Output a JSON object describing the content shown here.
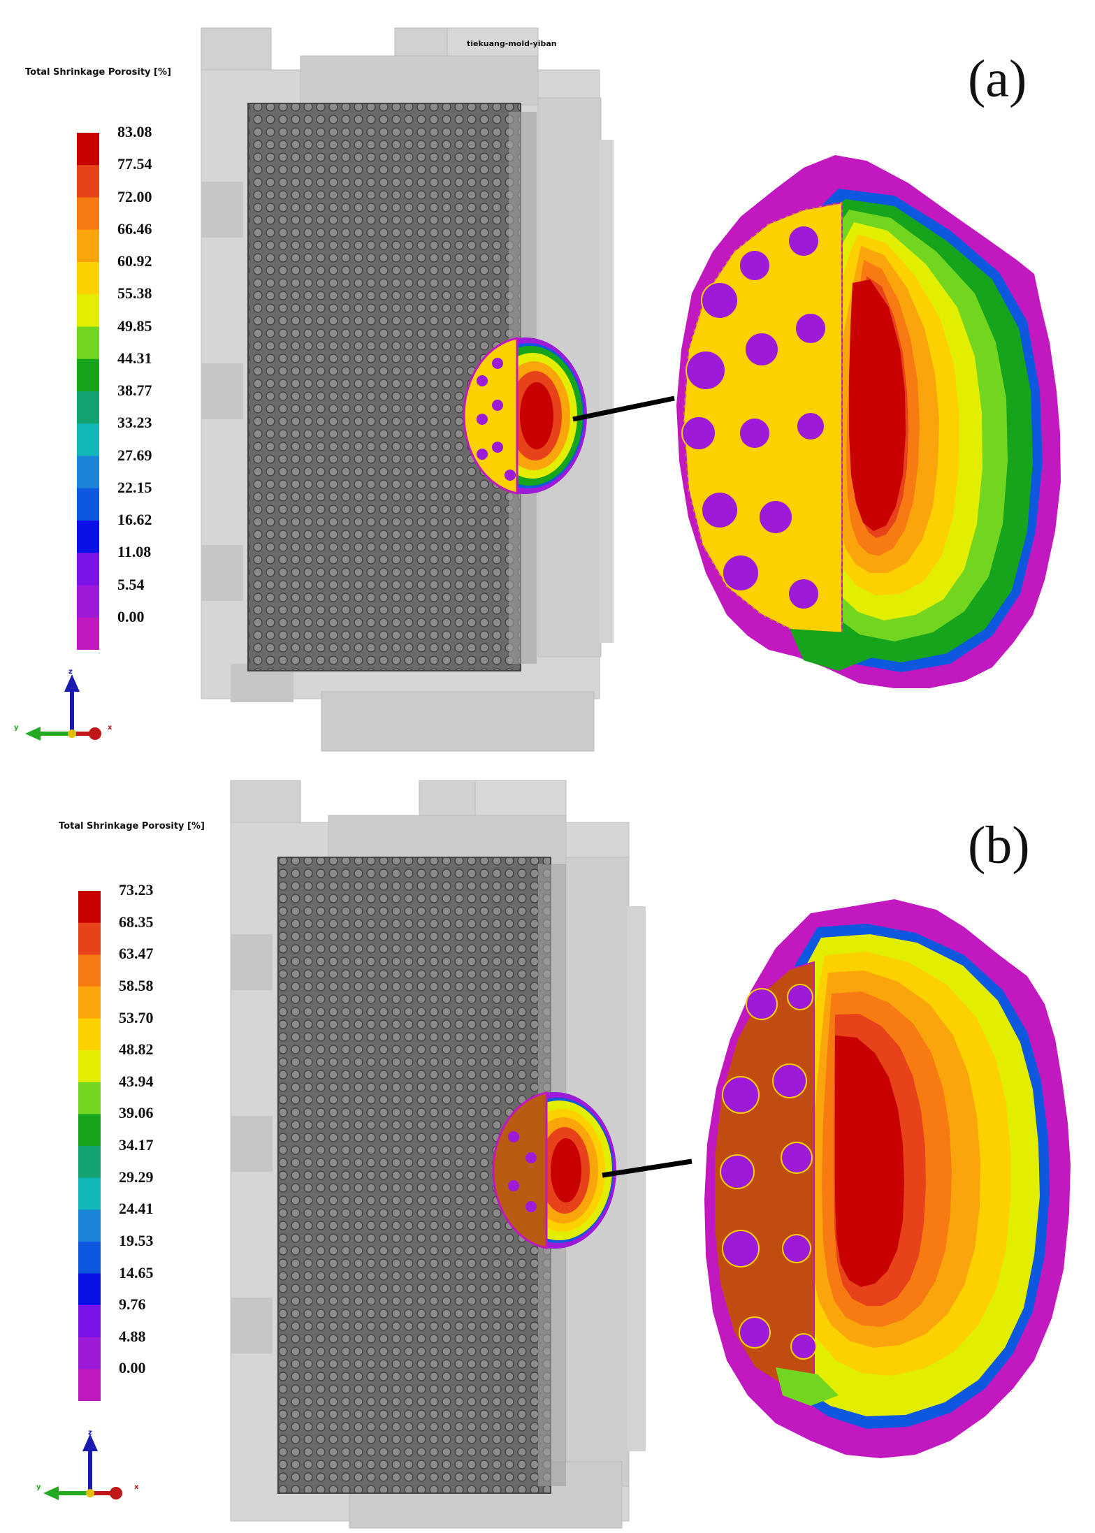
{
  "panels": [
    {
      "label": "(a)",
      "model_name": "tiekuang-mold-yiban",
      "legend": {
        "title": "Total Shrinkage Porosity [%]",
        "ticks": [
          "83.08",
          "77.54",
          "72.00",
          "66.46",
          "60.92",
          "55.38",
          "49.85",
          "44.31",
          "38.77",
          "33.23",
          "27.69",
          "22.15",
          "16.62",
          "11.08",
          "5.54",
          "0.00"
        ]
      },
      "axes": {
        "z": "z",
        "y": "y",
        "x": "x"
      }
    },
    {
      "label": "(b)",
      "model_name": "",
      "legend": {
        "title": "Total Shrinkage Porosity [%]",
        "ticks": [
          "73.23",
          "68.35",
          "63.47",
          "58.58",
          "53.70",
          "48.82",
          "43.94",
          "39.06",
          "34.17",
          "29.29",
          "24.41",
          "19.53",
          "14.65",
          "9.76",
          "4.88",
          "0.00"
        ]
      },
      "axes": {
        "z": "z",
        "y": "y",
        "x": "x"
      }
    }
  ],
  "colors": {
    "scale": [
      "#c80000",
      "#e8421a",
      "#f77b12",
      "#fba50c",
      "#fdd100",
      "#e2ee00",
      "#72d620",
      "#15a41c",
      "#13a271",
      "#12b8b8",
      "#1a84d8",
      "#0e58df",
      "#0a10e8",
      "#7a14e8",
      "#9c1ad8",
      "#c218c0"
    ],
    "mold": "#c9c9c9",
    "mesh": "#5a5a5a",
    "axis_z": "#1a1ab0",
    "axis_y": "#22aa22",
    "axis_x": "#c01818"
  }
}
